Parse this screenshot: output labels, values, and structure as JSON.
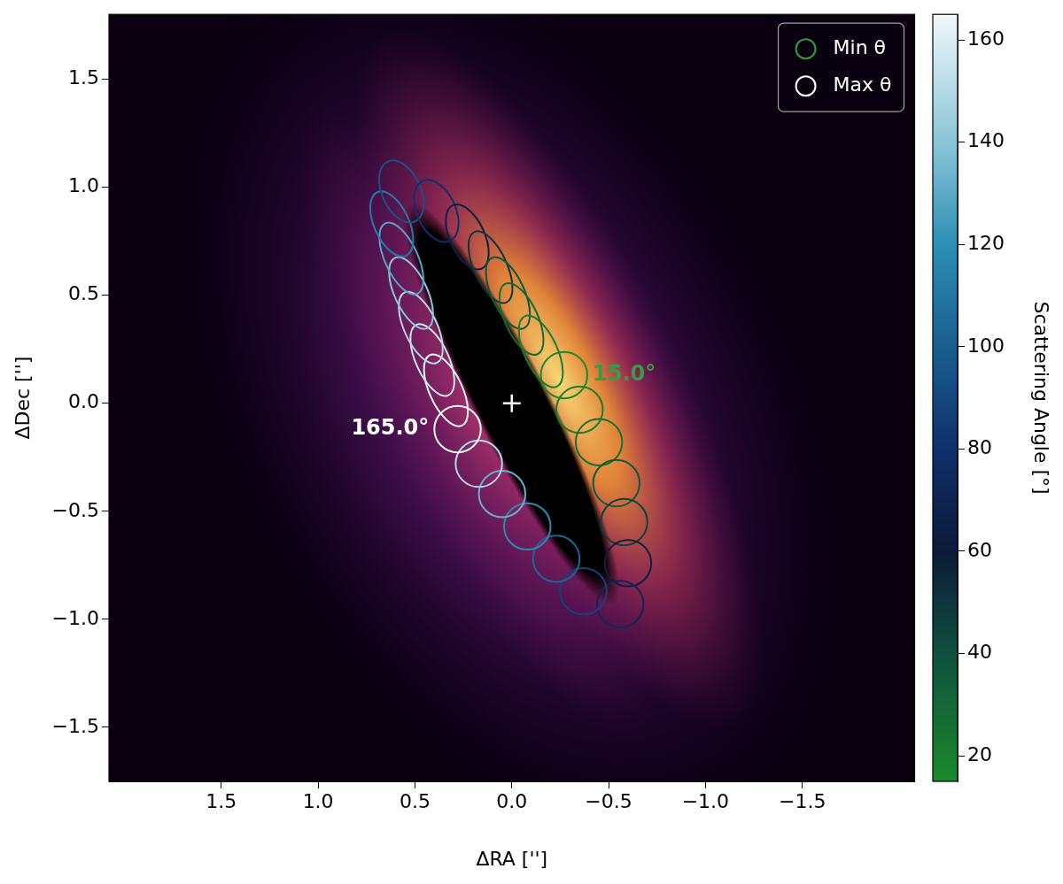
{
  "chart_data": {
    "type": "scatter",
    "x_label": "ΔRA ['']",
    "y_label": "ΔDec ['']",
    "xlim": [
      2.08,
      -2.08
    ],
    "ylim": [
      -1.75,
      1.8
    ],
    "xticks": [
      1.5,
      {
        "value": 1,
        "label": "1.0"
      },
      0.5,
      {
        "value": 0,
        "label": "0.0"
      },
      {
        "value": -0.5,
        "label": "−0.5"
      },
      {
        "value": -1,
        "label": "−1.0"
      },
      {
        "value": -1.5,
        "label": "−1.5"
      }
    ],
    "yticks": [
      1.5,
      {
        "value": 1,
        "label": "1.0"
      },
      0.5,
      {
        "value": 0,
        "label": "0.0"
      },
      {
        "value": -0.5,
        "label": "−0.5"
      },
      {
        "value": -1,
        "label": "−1.0"
      },
      {
        "value": -1.5,
        "label": "−1.5"
      }
    ],
    "grid": false,
    "legend": "upper right",
    "legend_items": [
      {
        "name": "Min θ",
        "color": "#2e9a3e"
      },
      {
        "name": "Max θ",
        "color": "#ffffff"
      }
    ],
    "center": {
      "x": 0,
      "y": 0,
      "marker": "plus"
    },
    "apertures": [
      {
        "x": -0.27,
        "y": 0.13,
        "scattering_angle": 15,
        "semi_major": 0.12,
        "semi_minor": 0.12,
        "tilt": 0
      },
      {
        "x": -0.35,
        "y": -0.03,
        "scattering_angle": 20,
        "semi_major": 0.12,
        "semi_minor": 0.12,
        "tilt": 0
      },
      {
        "x": -0.45,
        "y": -0.18,
        "scattering_angle": 27,
        "semi_major": 0.12,
        "semi_minor": 0.12,
        "tilt": 0
      },
      {
        "x": -0.54,
        "y": -0.37,
        "scattering_angle": 36,
        "semi_major": 0.12,
        "semi_minor": 0.12,
        "tilt": 0
      },
      {
        "x": -0.58,
        "y": -0.55,
        "scattering_angle": 46,
        "semi_major": 0.12,
        "semi_minor": 0.12,
        "tilt": 0
      },
      {
        "x": -0.6,
        "y": -0.74,
        "scattering_angle": 58,
        "semi_major": 0.12,
        "semi_minor": 0.12,
        "tilt": 0
      },
      {
        "x": -0.56,
        "y": -0.93,
        "scattering_angle": 72,
        "semi_major": 0.12,
        "semi_minor": 0.12,
        "tilt": 0
      },
      {
        "x": -0.37,
        "y": -0.87,
        "scattering_angle": 88,
        "semi_major": 0.12,
        "semi_minor": 0.12,
        "tilt": 0
      },
      {
        "x": -0.23,
        "y": -0.72,
        "scattering_angle": 103,
        "semi_major": 0.12,
        "semi_minor": 0.12,
        "tilt": 0
      },
      {
        "x": -0.08,
        "y": -0.57,
        "scattering_angle": 118,
        "semi_major": 0.12,
        "semi_minor": 0.12,
        "tilt": 0
      },
      {
        "x": 0.05,
        "y": -0.42,
        "scattering_angle": 132,
        "semi_major": 0.12,
        "semi_minor": 0.12,
        "tilt": 0
      },
      {
        "x": 0.17,
        "y": -0.28,
        "scattering_angle": 150,
        "semi_major": 0.12,
        "semi_minor": 0.12,
        "tilt": 0
      },
      {
        "x": 0.28,
        "y": -0.12,
        "scattering_angle": 165,
        "semi_major": 0.12,
        "semi_minor": 0.12,
        "tilt": 0
      },
      {
        "x": 0.34,
        "y": 0.06,
        "scattering_angle": 162,
        "semi_major": 0.2,
        "semi_minor": 0.085,
        "tilt": 63
      },
      {
        "x": 0.41,
        "y": 0.2,
        "scattering_angle": 156,
        "semi_major": 0.2,
        "semi_minor": 0.085,
        "tilt": 63
      },
      {
        "x": 0.47,
        "y": 0.35,
        "scattering_angle": 149,
        "semi_major": 0.2,
        "semi_minor": 0.085,
        "tilt": 63
      },
      {
        "x": 0.52,
        "y": 0.51,
        "scattering_angle": 140,
        "semi_major": 0.2,
        "semi_minor": 0.085,
        "tilt": 63
      },
      {
        "x": 0.57,
        "y": 0.67,
        "scattering_angle": 128,
        "semi_major": 0.2,
        "semi_minor": 0.085,
        "tilt": 63
      },
      {
        "x": 0.62,
        "y": 0.83,
        "scattering_angle": 112,
        "semi_major": 0.18,
        "semi_minor": 0.09,
        "tilt": 63
      },
      {
        "x": 0.57,
        "y": 0.98,
        "scattering_angle": 95,
        "semi_major": 0.17,
        "semi_minor": 0.1,
        "tilt": 63
      },
      {
        "x": 0.39,
        "y": 0.89,
        "scattering_angle": 80,
        "semi_major": 0.17,
        "semi_minor": 0.1,
        "tilt": 63
      },
      {
        "x": 0.23,
        "y": 0.77,
        "scattering_angle": 65,
        "semi_major": 0.18,
        "semi_minor": 0.09,
        "tilt": 63
      },
      {
        "x": 0.11,
        "y": 0.63,
        "scattering_angle": 50,
        "semi_major": 0.2,
        "semi_minor": 0.085,
        "tilt": 63
      },
      {
        "x": 0.02,
        "y": 0.51,
        "scattering_angle": 38,
        "semi_major": 0.2,
        "semi_minor": 0.085,
        "tilt": 63
      },
      {
        "x": -0.05,
        "y": 0.39,
        "scattering_angle": 28,
        "semi_major": 0.2,
        "semi_minor": 0.085,
        "tilt": 63
      },
      {
        "x": -0.15,
        "y": 0.24,
        "scattering_angle": 20,
        "semi_major": 0.2,
        "semi_minor": 0.085,
        "tilt": 63
      }
    ],
    "annotations": [
      {
        "text": "15.0°",
        "x": -0.27,
        "y": 0.13,
        "color": "#3a9a4a"
      },
      {
        "text": "165.0°",
        "x": 0.28,
        "y": -0.12,
        "color": "#ffffff"
      }
    ],
    "colorbar": {
      "label": "Scattering Angle [°]",
      "lim": [
        15,
        165
      ],
      "ticks": [
        20,
        40,
        60,
        80,
        100,
        120,
        140,
        160
      ]
    }
  }
}
